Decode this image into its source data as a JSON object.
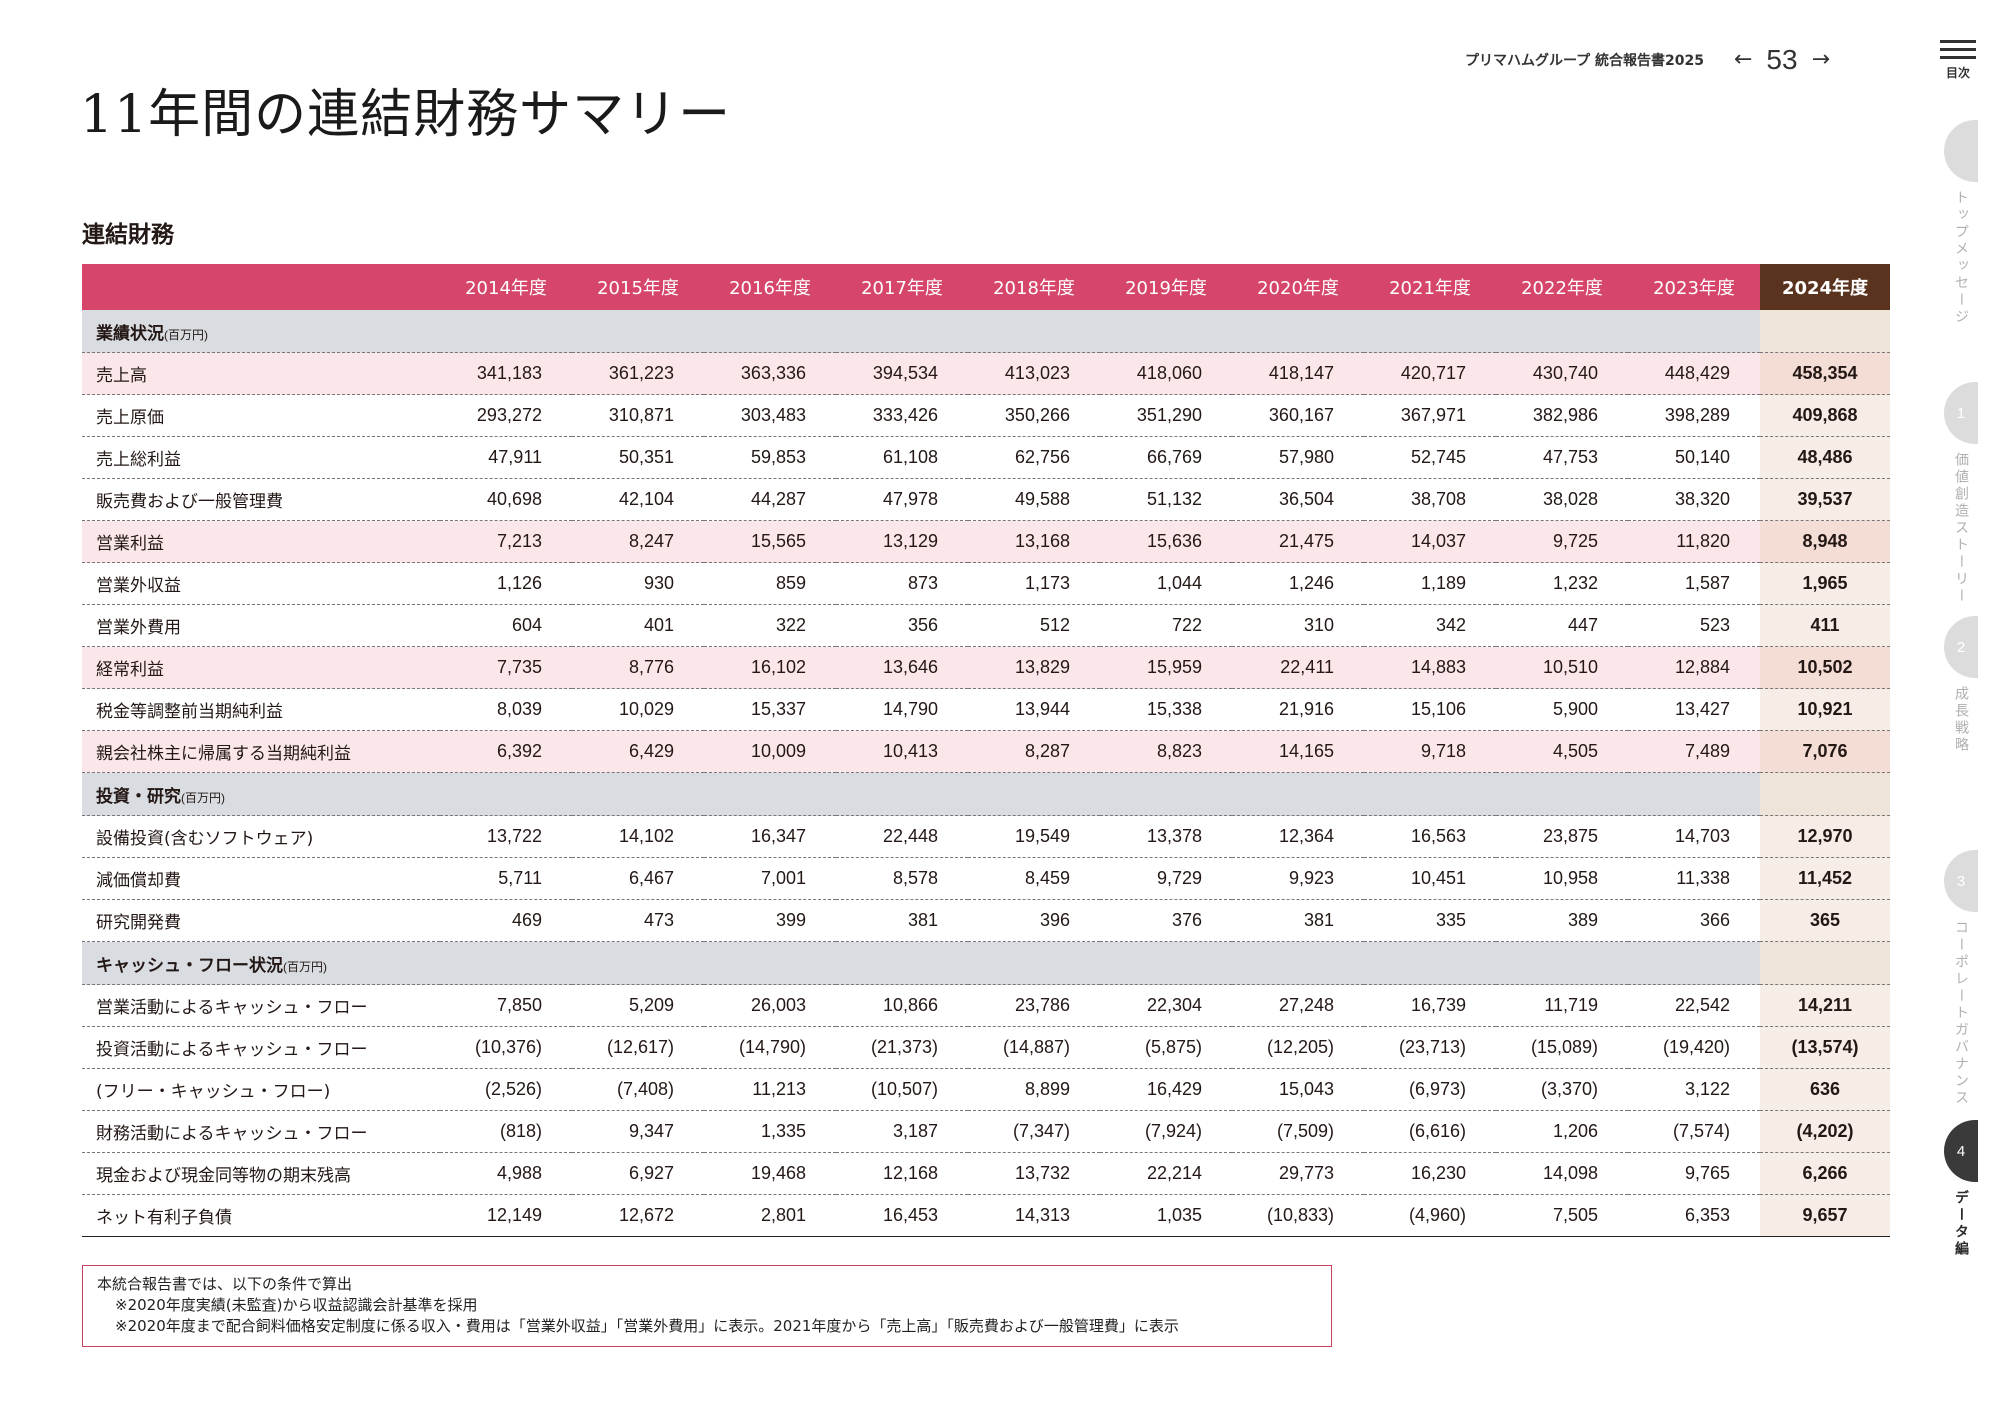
{
  "header": {
    "report_title": "プリマハムグループ 統合報告書2025",
    "page_number": "53",
    "prev_arrow": "←",
    "next_arrow": "→",
    "toc_label": "目次"
  },
  "page_title": "11年間の連結財務サマリー",
  "section_title": "連結財務",
  "table": {
    "years": [
      "2014年度",
      "2015年度",
      "2016年度",
      "2017年度",
      "2018年度",
      "2019年度",
      "2020年度",
      "2021年度",
      "2022年度",
      "2023年度",
      "2024年度"
    ],
    "groups": [
      {
        "title": "業績状況",
        "unit": "(百万円)",
        "rows": [
          {
            "label": "売上高",
            "highlight": true,
            "values": [
              "341,183",
              "361,223",
              "363,336",
              "394,534",
              "413,023",
              "418,060",
              "418,147",
              "420,717",
              "430,740",
              "448,429",
              "458,354"
            ]
          },
          {
            "label": "売上原価",
            "highlight": false,
            "values": [
              "293,272",
              "310,871",
              "303,483",
              "333,426",
              "350,266",
              "351,290",
              "360,167",
              "367,971",
              "382,986",
              "398,289",
              "409,868"
            ]
          },
          {
            "label": "売上総利益",
            "highlight": false,
            "values": [
              "47,911",
              "50,351",
              "59,853",
              "61,108",
              "62,756",
              "66,769",
              "57,980",
              "52,745",
              "47,753",
              "50,140",
              "48,486"
            ]
          },
          {
            "label": "販売費および一般管理費",
            "highlight": false,
            "values": [
              "40,698",
              "42,104",
              "44,287",
              "47,978",
              "49,588",
              "51,132",
              "36,504",
              "38,708",
              "38,028",
              "38,320",
              "39,537"
            ]
          },
          {
            "label": "営業利益",
            "highlight": true,
            "values": [
              "7,213",
              "8,247",
              "15,565",
              "13,129",
              "13,168",
              "15,636",
              "21,475",
              "14,037",
              "9,725",
              "11,820",
              "8,948"
            ]
          },
          {
            "label": "営業外収益",
            "highlight": false,
            "values": [
              "1,126",
              "930",
              "859",
              "873",
              "1,173",
              "1,044",
              "1,246",
              "1,189",
              "1,232",
              "1,587",
              "1,965"
            ]
          },
          {
            "label": "営業外費用",
            "highlight": false,
            "values": [
              "604",
              "401",
              "322",
              "356",
              "512",
              "722",
              "310",
              "342",
              "447",
              "523",
              "411"
            ]
          },
          {
            "label": "経常利益",
            "highlight": true,
            "values": [
              "7,735",
              "8,776",
              "16,102",
              "13,646",
              "13,829",
              "15,959",
              "22,411",
              "14,883",
              "10,510",
              "12,884",
              "10,502"
            ]
          },
          {
            "label": "税金等調整前当期純利益",
            "highlight": false,
            "values": [
              "8,039",
              "10,029",
              "15,337",
              "14,790",
              "13,944",
              "15,338",
              "21,916",
              "15,106",
              "5,900",
              "13,427",
              "10,921"
            ]
          },
          {
            "label": "親会社株主に帰属する当期純利益",
            "highlight": true,
            "values": [
              "6,392",
              "6,429",
              "10,009",
              "10,413",
              "8,287",
              "8,823",
              "14,165",
              "9,718",
              "4,505",
              "7,489",
              "7,076"
            ]
          }
        ]
      },
      {
        "title": "投資・研究",
        "unit": "(百万円)",
        "rows": [
          {
            "label": "設備投資(含むソフトウェア)",
            "highlight": false,
            "values": [
              "13,722",
              "14,102",
              "16,347",
              "22,448",
              "19,549",
              "13,378",
              "12,364",
              "16,563",
              "23,875",
              "14,703",
              "12,970"
            ]
          },
          {
            "label": "減価償却費",
            "highlight": false,
            "values": [
              "5,711",
              "6,467",
              "7,001",
              "8,578",
              "8,459",
              "9,729",
              "9,923",
              "10,451",
              "10,958",
              "11,338",
              "11,452"
            ]
          },
          {
            "label": "研究開発費",
            "highlight": false,
            "values": [
              "469",
              "473",
              "399",
              "381",
              "396",
              "376",
              "381",
              "335",
              "389",
              "366",
              "365"
            ]
          }
        ]
      },
      {
        "title": "キャッシュ・フロー状況",
        "unit": "(百万円)",
        "rows": [
          {
            "label": "営業活動によるキャッシュ・フロー",
            "highlight": false,
            "values": [
              "7,850",
              "5,209",
              "26,003",
              "10,866",
              "23,786",
              "22,304",
              "27,248",
              "16,739",
              "11,719",
              "22,542",
              "14,211"
            ]
          },
          {
            "label": "投資活動によるキャッシュ・フロー",
            "highlight": false,
            "values": [
              "(10,376)",
              "(12,617)",
              "(14,790)",
              "(21,373)",
              "(14,887)",
              "(5,875)",
              "(12,205)",
              "(23,713)",
              "(15,089)",
              "(19,420)",
              "(13,574)"
            ]
          },
          {
            "label": "(フリー・キャッシュ・フロー)",
            "highlight": false,
            "values": [
              "(2,526)",
              "(7,408)",
              "11,213",
              "(10,507)",
              "8,899",
              "16,429",
              "15,043",
              "(6,973)",
              "(3,370)",
              "3,122",
              "636"
            ]
          },
          {
            "label": "財務活動によるキャッシュ・フロー",
            "highlight": false,
            "values": [
              "(818)",
              "9,347",
              "1,335",
              "3,187",
              "(7,347)",
              "(7,924)",
              "(7,509)",
              "(6,616)",
              "1,206",
              "(7,574)",
              "(4,202)"
            ]
          },
          {
            "label": "現金および現金同等物の期末残高",
            "highlight": false,
            "values": [
              "4,988",
              "6,927",
              "19,468",
              "12,168",
              "13,732",
              "22,214",
              "29,773",
              "16,230",
              "14,098",
              "9,765",
              "6,266"
            ]
          },
          {
            "label": "ネット有利子負債",
            "highlight": false,
            "values": [
              "12,149",
              "12,672",
              "2,801",
              "16,453",
              "14,313",
              "1,035",
              "(10,833)",
              "(4,960)",
              "7,505",
              "6,353",
              "9,657"
            ]
          }
        ]
      }
    ]
  },
  "notes": {
    "lead": "本統合報告書では、以下の条件で算出",
    "items": [
      "※2020年度実績(未監査)から収益認識会計基準を採用",
      "※2020年度まで配合飼料価格安定制度に係る収入・費用は「営業外収益」「営業外費用」に表示。2021年度から「売上高」「販売費および一般管理費」に表示"
    ]
  },
  "side_nav": [
    {
      "number": "",
      "label": "トップメッセージ",
      "active": false
    },
    {
      "number": "1",
      "label": "価値創造ストーリー",
      "active": false
    },
    {
      "number": "2",
      "label": "成長戦略",
      "active": false
    },
    {
      "number": "3",
      "label": "コーポレートガバナンス",
      "active": false
    },
    {
      "number": "4",
      "label": "データ編",
      "active": true
    }
  ]
}
